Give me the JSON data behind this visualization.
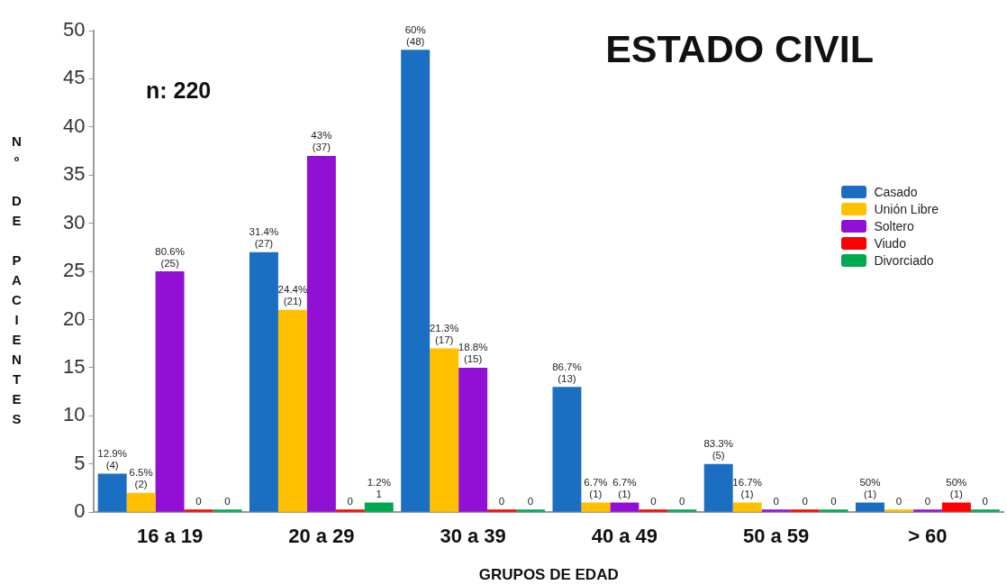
{
  "chart_data": {
    "type": "bar",
    "title": "ESTADO CIVIL",
    "xlabel": "GRUPOS DE EDAD",
    "ylabel": "Nº DE PACIENTES",
    "annotations": [
      "n: 220"
    ],
    "categories": [
      "16 a 19",
      "20 a 29",
      "30 a 39",
      "40 a 49",
      "50 a 59",
      "> 60"
    ],
    "series": [
      {
        "name": "Casado",
        "color": "#1b6fc2",
        "values": [
          4,
          27,
          48,
          13,
          5,
          1
        ],
        "value_labels": [
          "12.9%\n(4)",
          "31.4%\n(27)",
          "60%\n(48)",
          "86.7%\n(13)",
          "83.3%\n(5)",
          "50%\n(1)"
        ]
      },
      {
        "name": "Unión Libre",
        "color": "#ffc000",
        "values": [
          2,
          21,
          17,
          1,
          1,
          0
        ],
        "value_labels": [
          "6.5%\n(2)",
          "24.4%\n(21)",
          "21.3%\n(17)",
          "6.7%\n(1)",
          "16.7%\n(1)",
          "0"
        ]
      },
      {
        "name": "Soltero",
        "color": "#9110d4",
        "values": [
          25,
          37,
          15,
          1,
          0,
          0
        ],
        "value_labels": [
          "80.6%\n(25)",
          "43%\n(37)",
          "18.8%\n(15)",
          "6.7%\n(1)",
          "0",
          "0"
        ]
      },
      {
        "name": "Viudo",
        "color": "#ff0000",
        "values": [
          0,
          0,
          0,
          0,
          0,
          1
        ],
        "value_labels": [
          "0",
          "0",
          "0",
          "0",
          "0",
          "50%\n(1)"
        ]
      },
      {
        "name": "Divorciado",
        "color": "#00a850",
        "values": [
          0,
          1,
          0,
          0,
          0,
          0
        ],
        "value_labels": [
          "0",
          "1.2%\n1",
          "0",
          "0",
          "0",
          "0"
        ]
      }
    ],
    "ylim": [
      0,
      50
    ],
    "yticks": [
      0,
      5,
      10,
      15,
      20,
      25,
      30,
      35,
      40,
      45,
      50
    ],
    "legend": "right"
  }
}
